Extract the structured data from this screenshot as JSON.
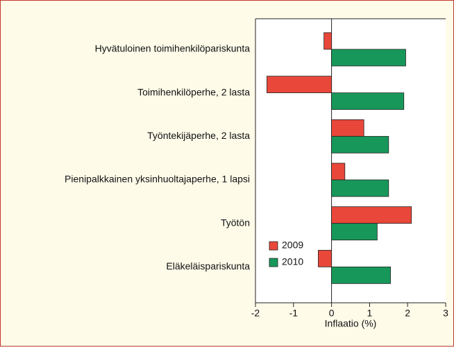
{
  "chart_data": {
    "type": "barh",
    "categories": [
      "Hyvätuloinen toimihenkilöpariskunta",
      "Toimihenkilöperhe, 2 lasta",
      "Työntekijäperhe, 2 lasta",
      "Pienipalkkainen yksinhuoltajaperhe, 1 lapsi",
      "Työtön",
      "Eläkeläispariskunta"
    ],
    "series": [
      {
        "name": "2009",
        "color": "#e8473a",
        "values": [
          -0.2,
          -1.7,
          0.85,
          0.35,
          2.1,
          -0.35
        ]
      },
      {
        "name": "2010",
        "color": "#17985a",
        "values": [
          1.95,
          1.9,
          1.5,
          1.5,
          1.2,
          1.55
        ]
      }
    ],
    "xlabel": "Inflaatio (%)",
    "xlim": [
      -2,
      3
    ],
    "xticks": [
      -2,
      -1,
      0,
      1,
      2,
      3
    ],
    "legend": "lower left"
  }
}
